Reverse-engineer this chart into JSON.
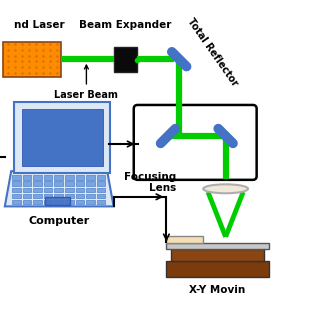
{
  "bg_color": "#ffffff",
  "laser_color": "#FF8C00",
  "laser_edge": "#8B4513",
  "beam_color": "#00CC00",
  "mirror_color": "#4472C4",
  "box_color": "#000000",
  "stage_brown1": "#8B4513",
  "stage_brown2": "#A0522D",
  "stage_cream": "#F5DEB3",
  "stage_gray": "#cccccc",
  "computer_screen": "#4472C4",
  "computer_body": "#e0e8f0",
  "computer_key": "#4472C4",
  "label_laser": "nd Laser",
  "label_beam": "Laser Beam",
  "label_expander": "Beam Expander",
  "label_reflector": "Total Reflector",
  "label_lens": "Focusing\nLens",
  "label_computer": "Computer",
  "label_stage": "X-Y Movin"
}
